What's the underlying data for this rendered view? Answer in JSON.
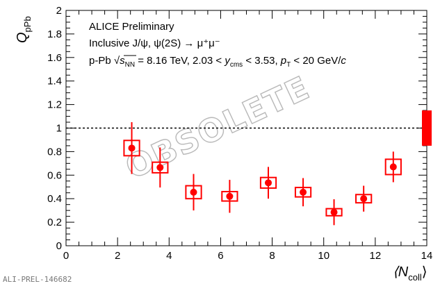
{
  "chart_data": {
    "type": "scatter",
    "title": "",
    "xlabel": "⟨N",
    "xlabel_sub": "coll",
    "xlabel_close": "⟩",
    "ylabel": "Q",
    "ylabel_sub": "pPb",
    "xlim": [
      0,
      14
    ],
    "ylim": [
      0,
      2
    ],
    "x_ticks": [
      "0",
      "2",
      "4",
      "6",
      "8",
      "10",
      "12",
      "14"
    ],
    "y_ticks": [
      "0",
      "0.2",
      "0.4",
      "0.6",
      "0.8",
      "1",
      "1.2",
      "1.4",
      "1.6",
      "1.8",
      "2"
    ],
    "reference_line": 1,
    "annotations": {
      "line1": "ALICE Preliminary",
      "line2": "Inclusive J/ψ, ψ(2S) → μ⁺μ⁻",
      "line3_a": "p-Pb ",
      "line3_sqrt": "s",
      "line3_nn": "NN",
      "line3_b": " = 8.16 TeV, 2.03 < ",
      "line3_y": "y",
      "line3_cms": "cms",
      "line3_c": " < 3.53, ",
      "line3_p": "p",
      "line3_T": "T",
      "line3_d": " < 20 GeV/",
      "line3_cvar": "c"
    },
    "watermark": "OBSOLETE",
    "preliminary_id": "ALI-PREL-146682",
    "color": "#ff0000",
    "series": [
      {
        "points": [
          {
            "x": 2.55,
            "y": 0.83,
            "stat": 0.22,
            "syst": 0.065,
            "xw": 0.3
          },
          {
            "x": 3.65,
            "y": 0.665,
            "stat": 0.17,
            "syst": 0.045,
            "xw": 0.3
          },
          {
            "x": 4.95,
            "y": 0.455,
            "stat": 0.155,
            "syst": 0.055,
            "xw": 0.3
          },
          {
            "x": 6.35,
            "y": 0.42,
            "stat": 0.14,
            "syst": 0.04,
            "xw": 0.3
          },
          {
            "x": 7.85,
            "y": 0.535,
            "stat": 0.135,
            "syst": 0.045,
            "xw": 0.3
          },
          {
            "x": 9.2,
            "y": 0.455,
            "stat": 0.12,
            "syst": 0.04,
            "xw": 0.3
          },
          {
            "x": 10.4,
            "y": 0.285,
            "stat": 0.11,
            "syst": 0.03,
            "xw": 0.3
          },
          {
            "x": 11.55,
            "y": 0.4,
            "stat": 0.11,
            "syst": 0.035,
            "xw": 0.3
          },
          {
            "x": 12.7,
            "y": 0.67,
            "stat": 0.13,
            "syst": 0.065,
            "xw": 0.3
          }
        ]
      }
    ],
    "global_uncertainty": {
      "x": 14,
      "low": 0.85,
      "high": 1.15
    }
  }
}
